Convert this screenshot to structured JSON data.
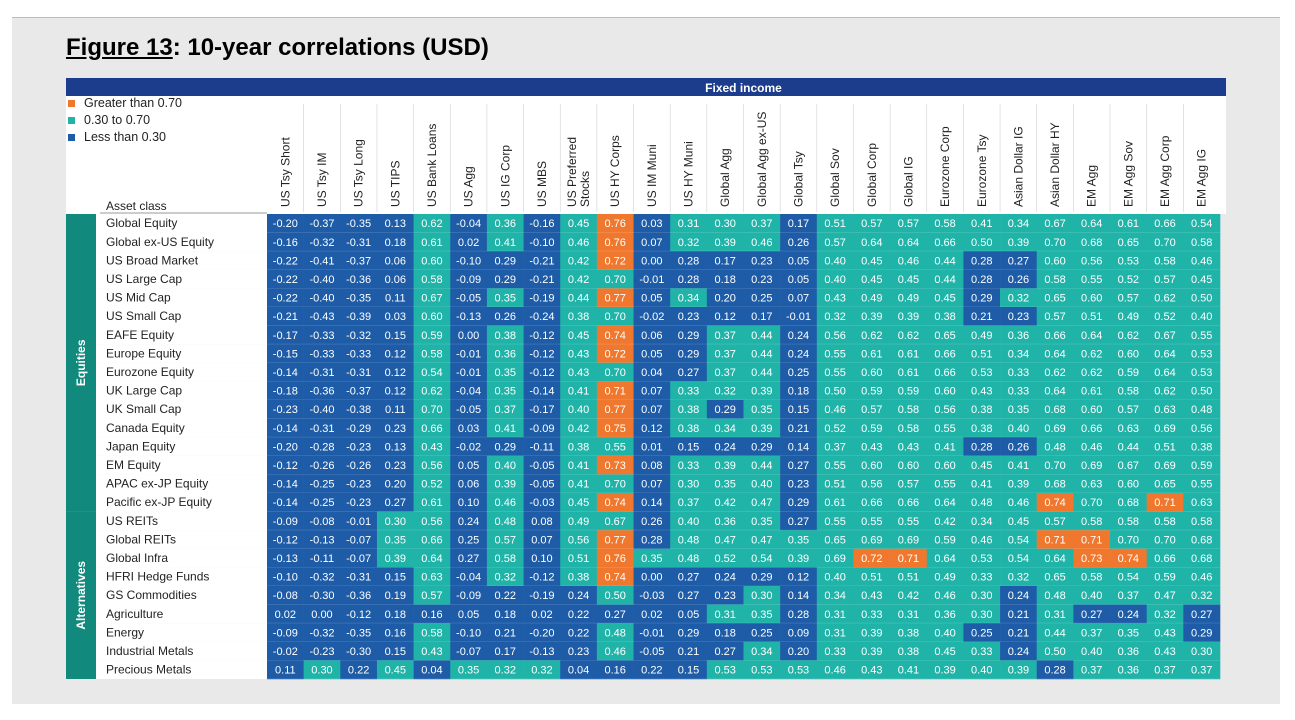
{
  "page": {
    "figure_label": "Figure 13",
    "figure_title": ": 10-year correlations (USD)"
  },
  "colors": {
    "header": "#1c3c8c",
    "high": "#f0782e",
    "mid": "#20b4a8",
    "low": "#1e5ca8",
    "sidebar": "#11897c"
  },
  "chart_data": {
    "type": "heatmap",
    "header_label": "Fixed income",
    "row_header": "Asset class",
    "legend": [
      {
        "label": "Greater than 0.70",
        "color": "#f0782e"
      },
      {
        "label": "0.30 to 0.70",
        "color": "#20b4a8"
      },
      {
        "label": "Less than 0.30",
        "color": "#1e5ca8"
      }
    ],
    "thresholds": {
      "high": 0.7,
      "low": 0.3
    },
    "columns": [
      [
        "US Tsy Short"
      ],
      [
        "US Tsy IM"
      ],
      [
        "US Tsy Long"
      ],
      [
        "US TIPS"
      ],
      [
        "US Bank Loans"
      ],
      [
        "US Agg"
      ],
      [
        "US IG Corp"
      ],
      [
        "US MBS"
      ],
      [
        "US Preferred",
        "Stocks"
      ],
      [
        "US HY Corps"
      ],
      [
        "US IM Muni"
      ],
      [
        "US HY Muni"
      ],
      [
        "Global Agg"
      ],
      [
        "Global Agg  ex-US"
      ],
      [
        "Global Tsy"
      ],
      [
        "Global Sov"
      ],
      [
        "Global Corp"
      ],
      [
        "Global IG"
      ],
      [
        "Eurozone Corp"
      ],
      [
        "Eurozone Tsy"
      ],
      [
        "Asian Dollar IG"
      ],
      [
        "Asian Dollar HY"
      ],
      [
        "EM Agg"
      ],
      [
        "EM Agg Sov"
      ],
      [
        "EM Agg Corp"
      ],
      [
        "EM Agg IG"
      ]
    ],
    "groups": [
      {
        "name": "Equities",
        "rows": [
          {
            "label": "Global Equity",
            "values": [
              "-0.20",
              "-0.37",
              "-0.35",
              "0.13",
              "0.62",
              "-0.04",
              "0.36",
              "-0.16",
              "0.45",
              "0.76",
              "0.03",
              "0.31",
              "0.30",
              "0.37",
              "0.17",
              "0.51",
              "0.57",
              "0.57",
              "0.58",
              "0.41",
              "0.34",
              "0.67",
              "0.64",
              "0.61",
              "0.66",
              "0.54"
            ]
          },
          {
            "label": "Global ex-US Equity",
            "values": [
              "-0.16",
              "-0.32",
              "-0.31",
              "0.18",
              "0.61",
              "0.02",
              "0.41",
              "-0.10",
              "0.46",
              "0.76",
              "0.07",
              "0.32",
              "0.39",
              "0.46",
              "0.26",
              "0.57",
              "0.64",
              "0.64",
              "0.66",
              "0.50",
              "0.39",
              "0.70",
              "0.68",
              "0.65",
              "0.70",
              "0.58"
            ]
          },
          {
            "label": "US Broad Market",
            "values": [
              "-0.22",
              "-0.41",
              "-0.37",
              "0.06",
              "0.60",
              "-0.10",
              "0.29",
              "-0.21",
              "0.42",
              "0.72",
              "0.00",
              "0.28",
              "0.17",
              "0.23",
              "0.05",
              "0.40",
              "0.45",
              "0.46",
              "0.44",
              "0.28",
              "0.27",
              "0.60",
              "0.56",
              "0.53",
              "0.58",
              "0.46"
            ]
          },
          {
            "label": "US Large Cap",
            "values": [
              "-0.22",
              "-0.40",
              "-0.36",
              "0.06",
              "0.58",
              "-0.09",
              "0.29",
              "-0.21",
              "0.42",
              "0.70",
              "-0.01",
              "0.28",
              "0.18",
              "0.23",
              "0.05",
              "0.40",
              "0.45",
              "0.45",
              "0.44",
              "0.28",
              "0.26",
              "0.58",
              "0.55",
              "0.52",
              "0.57",
              "0.45"
            ]
          },
          {
            "label": "US Mid Cap",
            "values": [
              "-0.22",
              "-0.40",
              "-0.35",
              "0.11",
              "0.67",
              "-0.05",
              "0.35",
              "-0.19",
              "0.44",
              "0.77",
              "0.05",
              "0.34",
              "0.20",
              "0.25",
              "0.07",
              "0.43",
              "0.49",
              "0.49",
              "0.45",
              "0.29",
              "0.32",
              "0.65",
              "0.60",
              "0.57",
              "0.62",
              "0.50"
            ]
          },
          {
            "label": "US Small Cap",
            "values": [
              "-0.21",
              "-0.43",
              "-0.39",
              "0.03",
              "0.60",
              "-0.13",
              "0.26",
              "-0.24",
              "0.38",
              "0.70",
              "-0.02",
              "0.23",
              "0.12",
              "0.17",
              "-0.01",
              "0.32",
              "0.39",
              "0.39",
              "0.38",
              "0.21",
              "0.23",
              "0.57",
              "0.51",
              "0.49",
              "0.52",
              "0.40"
            ]
          },
          {
            "label": "EAFE Equity",
            "values": [
              "-0.17",
              "-0.33",
              "-0.32",
              "0.15",
              "0.59",
              "0.00",
              "0.38",
              "-0.12",
              "0.45",
              "0.74",
              "0.06",
              "0.29",
              "0.37",
              "0.44",
              "0.24",
              "0.56",
              "0.62",
              "0.62",
              "0.65",
              "0.49",
              "0.36",
              "0.66",
              "0.64",
              "0.62",
              "0.67",
              "0.55"
            ]
          },
          {
            "label": "Europe Equity",
            "values": [
              "-0.15",
              "-0.33",
              "-0.33",
              "0.12",
              "0.58",
              "-0.01",
              "0.36",
              "-0.12",
              "0.43",
              "0.72",
              "0.05",
              "0.29",
              "0.37",
              "0.44",
              "0.24",
              "0.55",
              "0.61",
              "0.61",
              "0.66",
              "0.51",
              "0.34",
              "0.64",
              "0.62",
              "0.60",
              "0.64",
              "0.53"
            ]
          },
          {
            "label": "Eurozone Equity",
            "values": [
              "-0.14",
              "-0.31",
              "-0.31",
              "0.12",
              "0.54",
              "-0.01",
              "0.35",
              "-0.12",
              "0.43",
              "0.70",
              "0.04",
              "0.27",
              "0.37",
              "0.44",
              "0.25",
              "0.55",
              "0.60",
              "0.61",
              "0.66",
              "0.53",
              "0.33",
              "0.62",
              "0.62",
              "0.59",
              "0.64",
              "0.53"
            ]
          },
          {
            "label": "UK Large Cap",
            "values": [
              "-0.18",
              "-0.36",
              "-0.37",
              "0.12",
              "0.62",
              "-0.04",
              "0.35",
              "-0.14",
              "0.41",
              "0.71",
              "0.07",
              "0.33",
              "0.32",
              "0.39",
              "0.18",
              "0.50",
              "0.59",
              "0.59",
              "0.60",
              "0.43",
              "0.33",
              "0.64",
              "0.61",
              "0.58",
              "0.62",
              "0.50"
            ]
          },
          {
            "label": "UK Small Cap",
            "values": [
              "-0.23",
              "-0.40",
              "-0.38",
              "0.11",
              "0.70",
              "-0.05",
              "0.37",
              "-0.17",
              "0.40",
              "0.77",
              "0.07",
              "0.38",
              "0.29",
              "0.35",
              "0.15",
              "0.46",
              "0.57",
              "0.58",
              "0.56",
              "0.38",
              "0.35",
              "0.68",
              "0.60",
              "0.57",
              "0.63",
              "0.48"
            ]
          },
          {
            "label": "Canada Equity",
            "values": [
              "-0.14",
              "-0.31",
              "-0.29",
              "0.23",
              "0.66",
              "0.03",
              "0.41",
              "-0.09",
              "0.42",
              "0.75",
              "0.12",
              "0.38",
              "0.34",
              "0.39",
              "0.21",
              "0.52",
              "0.59",
              "0.58",
              "0.55",
              "0.38",
              "0.40",
              "0.69",
              "0.66",
              "0.63",
              "0.69",
              "0.56"
            ]
          },
          {
            "label": "Japan Equity",
            "values": [
              "-0.20",
              "-0.28",
              "-0.23",
              "0.13",
              "0.43",
              "-0.02",
              "0.29",
              "-0.11",
              "0.38",
              "0.55",
              "0.01",
              "0.15",
              "0.24",
              "0.29",
              "0.14",
              "0.37",
              "0.43",
              "0.43",
              "0.41",
              "0.28",
              "0.26",
              "0.48",
              "0.46",
              "0.44",
              "0.51",
              "0.38"
            ]
          },
          {
            "label": "EM Equity",
            "values": [
              "-0.12",
              "-0.26",
              "-0.26",
              "0.23",
              "0.56",
              "0.05",
              "0.40",
              "-0.05",
              "0.41",
              "0.73",
              "0.08",
              "0.33",
              "0.39",
              "0.44",
              "0.27",
              "0.55",
              "0.60",
              "0.60",
              "0.60",
              "0.45",
              "0.41",
              "0.70",
              "0.69",
              "0.67",
              "0.69",
              "0.59"
            ]
          },
          {
            "label": "APAC ex-JP Equity",
            "values": [
              "-0.14",
              "-0.25",
              "-0.23",
              "0.20",
              "0.52",
              "0.06",
              "0.39",
              "-0.05",
              "0.41",
              "0.70",
              "0.07",
              "0.30",
              "0.35",
              "0.40",
              "0.23",
              "0.51",
              "0.56",
              "0.57",
              "0.55",
              "0.41",
              "0.39",
              "0.68",
              "0.63",
              "0.60",
              "0.65",
              "0.55"
            ]
          },
          {
            "label": "Pacific ex-JP Equity",
            "values": [
              "-0.14",
              "-0.25",
              "-0.23",
              "0.27",
              "0.61",
              "0.10",
              "0.46",
              "-0.03",
              "0.45",
              "0.74",
              "0.14",
              "0.37",
              "0.42",
              "0.47",
              "0.29",
              "0.61",
              "0.66",
              "0.66",
              "0.64",
              "0.48",
              "0.46",
              "0.74",
              "0.70",
              "0.68",
              "0.71",
              "0.63"
            ]
          }
        ]
      },
      {
        "name": "Alternatives",
        "rows": [
          {
            "label": "US REITs",
            "values": [
              "-0.09",
              "-0.08",
              "-0.01",
              "0.30",
              "0.56",
              "0.24",
              "0.48",
              "0.08",
              "0.49",
              "0.67",
              "0.26",
              "0.40",
              "0.36",
              "0.35",
              "0.27",
              "0.55",
              "0.55",
              "0.55",
              "0.42",
              "0.34",
              "0.45",
              "0.57",
              "0.58",
              "0.58",
              "0.58",
              "0.58"
            ]
          },
          {
            "label": "Global REITs",
            "values": [
              "-0.12",
              "-0.13",
              "-0.07",
              "0.35",
              "0.66",
              "0.25",
              "0.57",
              "0.07",
              "0.56",
              "0.77",
              "0.28",
              "0.48",
              "0.47",
              "0.47",
              "0.35",
              "0.65",
              "0.69",
              "0.69",
              "0.59",
              "0.46",
              "0.54",
              "0.71",
              "0.71",
              "0.70",
              "0.70",
              "0.68"
            ]
          },
          {
            "label": "Global Infra",
            "values": [
              "-0.13",
              "-0.11",
              "-0.07",
              "0.39",
              "0.64",
              "0.27",
              "0.58",
              "0.10",
              "0.51",
              "0.76",
              "0.35",
              "0.48",
              "0.52",
              "0.54",
              "0.39",
              "0.69",
              "0.72",
              "0.71",
              "0.64",
              "0.53",
              "0.54",
              "0.64",
              "0.73",
              "0.74",
              "0.66",
              "0.68"
            ]
          },
          {
            "label": "HFRI Hedge Funds",
            "values": [
              "-0.10",
              "-0.32",
              "-0.31",
              "0.15",
              "0.63",
              "-0.04",
              "0.32",
              "-0.12",
              "0.38",
              "0.74",
              "0.00",
              "0.27",
              "0.24",
              "0.29",
              "0.12",
              "0.40",
              "0.51",
              "0.51",
              "0.49",
              "0.33",
              "0.32",
              "0.65",
              "0.58",
              "0.54",
              "0.59",
              "0.46"
            ]
          },
          {
            "label": "GS Commodities",
            "values": [
              "-0.08",
              "-0.30",
              "-0.36",
              "0.19",
              "0.57",
              "-0.09",
              "0.22",
              "-0.19",
              "0.24",
              "0.50",
              "-0.03",
              "0.27",
              "0.23",
              "0.30",
              "0.14",
              "0.34",
              "0.43",
              "0.42",
              "0.46",
              "0.30",
              "0.24",
              "0.48",
              "0.40",
              "0.37",
              "0.47",
              "0.32"
            ]
          },
          {
            "label": "Agriculture",
            "values": [
              "0.02",
              "0.00",
              "-0.12",
              "0.18",
              "0.16",
              "0.05",
              "0.18",
              "0.02",
              "0.22",
              "0.27",
              "0.02",
              "0.05",
              "0.31",
              "0.35",
              "0.28",
              "0.31",
              "0.33",
              "0.31",
              "0.36",
              "0.30",
              "0.21",
              "0.31",
              "0.27",
              "0.24",
              "0.32",
              "0.27"
            ]
          },
          {
            "label": "Energy",
            "values": [
              "-0.09",
              "-0.32",
              "-0.35",
              "0.16",
              "0.58",
              "-0.10",
              "0.21",
              "-0.20",
              "0.22",
              "0.48",
              "-0.01",
              "0.29",
              "0.18",
              "0.25",
              "0.09",
              "0.31",
              "0.39",
              "0.38",
              "0.40",
              "0.25",
              "0.21",
              "0.44",
              "0.37",
              "0.35",
              "0.43",
              "0.29"
            ]
          },
          {
            "label": "Industrial Metals",
            "values": [
              "-0.02",
              "-0.23",
              "-0.30",
              "0.15",
              "0.43",
              "-0.07",
              "0.17",
              "-0.13",
              "0.23",
              "0.46",
              "-0.05",
              "0.21",
              "0.27",
              "0.34",
              "0.20",
              "0.33",
              "0.39",
              "0.38",
              "0.45",
              "0.33",
              "0.24",
              "0.50",
              "0.40",
              "0.36",
              "0.43",
              "0.30"
            ]
          },
          {
            "label": "Precious Metals",
            "values": [
              "0.11",
              "0.30",
              "0.22",
              "0.45",
              "0.04",
              "0.35",
              "0.32",
              "0.32",
              "0.04",
              "0.16",
              "0.22",
              "0.15",
              "0.53",
              "0.53",
              "0.53",
              "0.46",
              "0.43",
              "0.41",
              "0.39",
              "0.40",
              "0.39",
              "0.28",
              "0.37",
              "0.36",
              "0.37",
              "0.37"
            ]
          }
        ]
      }
    ]
  }
}
